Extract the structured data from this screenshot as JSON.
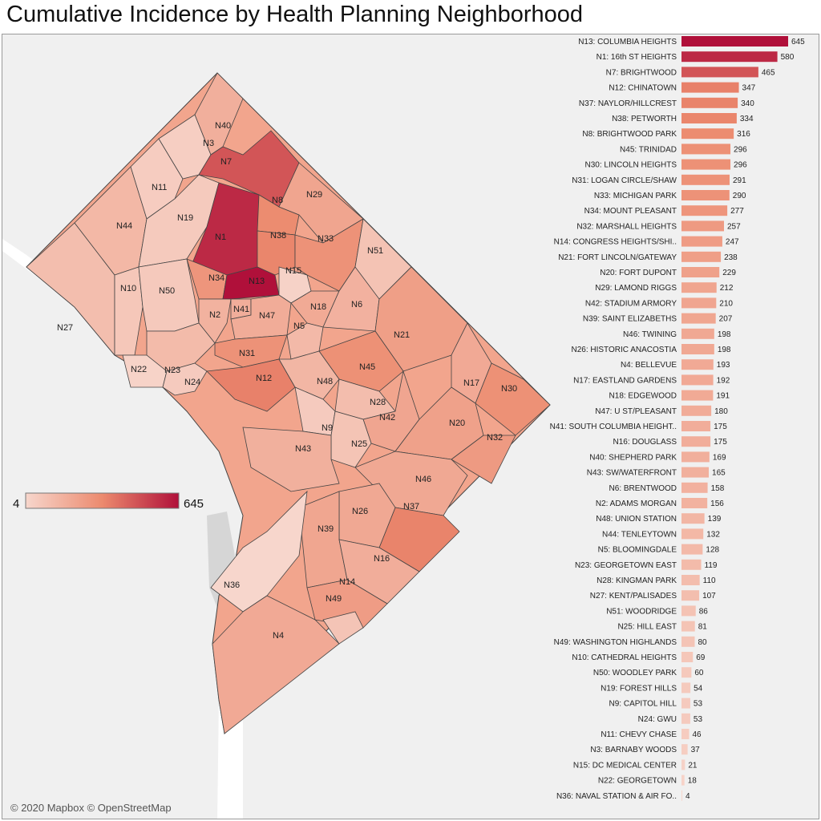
{
  "title": "Cumulative Incidence by Health Planning Neighborhood",
  "attribution": "© 2020 Mapbox © OpenStreetMap",
  "colors": {
    "low": "#f7d6cc",
    "mid": "#ec8a6e",
    "high": "#b0103a",
    "background": "#f0f0f0"
  },
  "legend": {
    "min_label": "4",
    "max_label": "645"
  },
  "chart_data": {
    "type": "bar",
    "orientation": "horizontal",
    "title": "Cumulative Incidence by Health Planning Neighborhood",
    "color_scale": {
      "min": 4,
      "max": 645
    },
    "bars": [
      {
        "code": "N13",
        "label": "N13: COLUMBIA HEIGHTS",
        "value": 645
      },
      {
        "code": "N1",
        "label": "N1: 16th ST HEIGHTS",
        "value": 580
      },
      {
        "code": "N7",
        "label": "N7: BRIGHTWOOD",
        "value": 465
      },
      {
        "code": "N12",
        "label": "N12: CHINATOWN",
        "value": 347
      },
      {
        "code": "N37",
        "label": "N37: NAYLOR/HILLCREST",
        "value": 340
      },
      {
        "code": "N38",
        "label": "N38: PETWORTH",
        "value": 334
      },
      {
        "code": "N8",
        "label": "N8: BRIGHTWOOD PARK",
        "value": 316
      },
      {
        "code": "N45",
        "label": "N45: TRINIDAD",
        "value": 296
      },
      {
        "code": "N30",
        "label": "N30: LINCOLN HEIGHTS",
        "value": 296
      },
      {
        "code": "N31",
        "label": "N31: LOGAN CIRCLE/SHAW",
        "value": 291
      },
      {
        "code": "N33",
        "label": "N33: MICHIGAN PARK",
        "value": 290
      },
      {
        "code": "N34",
        "label": "N34: MOUNT PLEASANT",
        "value": 277
      },
      {
        "code": "N32",
        "label": "N32: MARSHALL HEIGHTS",
        "value": 257
      },
      {
        "code": "N14",
        "label": "N14: CONGRESS HEIGHTS/SHI..",
        "value": 247
      },
      {
        "code": "N21",
        "label": "N21: FORT LINCOLN/GATEWAY",
        "value": 238
      },
      {
        "code": "N20",
        "label": "N20: FORT DUPONT",
        "value": 229
      },
      {
        "code": "N29",
        "label": "N29: LAMOND RIGGS",
        "value": 212
      },
      {
        "code": "N42",
        "label": "N42: STADIUM ARMORY",
        "value": 210
      },
      {
        "code": "N39",
        "label": "N39: SAINT ELIZABETHS",
        "value": 207
      },
      {
        "code": "N46",
        "label": "N46: TWINING",
        "value": 198
      },
      {
        "code": "N26",
        "label": "N26: HISTORIC ANACOSTIA",
        "value": 198
      },
      {
        "code": "N4",
        "label": "N4: BELLEVUE",
        "value": 193
      },
      {
        "code": "N17",
        "label": "N17: EASTLAND GARDENS",
        "value": 192
      },
      {
        "code": "N18",
        "label": "N18: EDGEWOOD",
        "value": 191
      },
      {
        "code": "N47",
        "label": "N47: U ST/PLEASANT",
        "value": 180
      },
      {
        "code": "N41",
        "label": "N41: SOUTH COLUMBIA HEIGHT..",
        "value": 175
      },
      {
        "code": "N16",
        "label": "N16: DOUGLASS",
        "value": 175
      },
      {
        "code": "N40",
        "label": "N40: SHEPHERD PARK",
        "value": 169
      },
      {
        "code": "N43",
        "label": "N43: SW/WATERFRONT",
        "value": 165
      },
      {
        "code": "N6",
        "label": "N6: BRENTWOOD",
        "value": 158
      },
      {
        "code": "N2",
        "label": "N2: ADAMS MORGAN",
        "value": 156
      },
      {
        "code": "N48",
        "label": "N48: UNION STATION",
        "value": 139
      },
      {
        "code": "N44",
        "label": "N44: TENLEYTOWN",
        "value": 132
      },
      {
        "code": "N5",
        "label": "N5: BLOOMINGDALE",
        "value": 128
      },
      {
        "code": "N23",
        "label": "N23: GEORGETOWN EAST",
        "value": 119
      },
      {
        "code": "N28",
        "label": "N28: KINGMAN PARK",
        "value": 110
      },
      {
        "code": "N27",
        "label": "N27: KENT/PALISADES",
        "value": 107
      },
      {
        "code": "N51",
        "label": "N51: WOODRIDGE",
        "value": 86
      },
      {
        "code": "N25",
        "label": "N25: HILL EAST",
        "value": 81
      },
      {
        "code": "N49",
        "label": "N49: WASHINGTON HIGHLANDS",
        "value": 80
      },
      {
        "code": "N10",
        "label": "N10: CATHEDRAL HEIGHTS",
        "value": 69
      },
      {
        "code": "N50",
        "label": "N50: WOODLEY PARK",
        "value": 60
      },
      {
        "code": "N19",
        "label": "N19: FOREST HILLS",
        "value": 54
      },
      {
        "code": "N9",
        "label": "N9: CAPITOL HILL",
        "value": 53
      },
      {
        "code": "N24",
        "label": "N24: GWU",
        "value": 53
      },
      {
        "code": "N11",
        "label": "N11: CHEVY CHASE",
        "value": 46
      },
      {
        "code": "N3",
        "label": "N3: BARNABY WOODS",
        "value": 37
      },
      {
        "code": "N15",
        "label": "N15: DC MEDICAL CENTER",
        "value": 21
      },
      {
        "code": "N22",
        "label": "N22: GEORGETOWN",
        "value": 18
      },
      {
        "code": "N36",
        "label": "N36: NAVAL STATION & AIR FO..",
        "value": 4
      }
    ]
  }
}
